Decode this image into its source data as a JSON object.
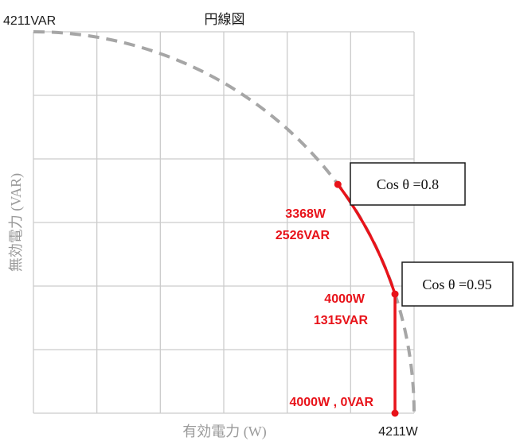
{
  "chart_data": {
    "type": "line",
    "title": "円線図",
    "xlabel": "有効電力 (W)",
    "ylabel": "無効電力 (VAR)",
    "xlim": [
      0,
      4211
    ],
    "ylim": [
      0,
      4211
    ],
    "x_max_label": "4211W",
    "y_max_label": "4211VAR",
    "grid": true,
    "gridlines": 5,
    "circle": {
      "radius": 4211,
      "style": "dashed",
      "color": "#a6a6a6"
    },
    "series": [
      {
        "color": "#e8131a",
        "segments": [
          {
            "type": "arc",
            "from": [
              3368,
              2526
            ],
            "to": [
              4000,
              1315
            ]
          },
          {
            "type": "line",
            "from": [
              4000,
              1315
            ],
            "to": [
              4000,
              0
            ]
          }
        ]
      }
    ],
    "points": [
      {
        "x": 3368,
        "y": 2526,
        "label_line1": "3368W",
        "label_line2": "2526VAR"
      },
      {
        "x": 4000,
        "y": 1315,
        "label_line1": "4000W",
        "label_line2": "1315VAR"
      },
      {
        "x": 4000,
        "y": 0,
        "label_line1": "4000W , 0VAR",
        "label_line2": ""
      }
    ],
    "annotations": [
      {
        "text": "Cos θ =0.8",
        "pointer": [
          3368,
          2526
        ]
      },
      {
        "text": "Cos θ =0.95",
        "pointer": [
          4000,
          1315
        ]
      }
    ]
  }
}
